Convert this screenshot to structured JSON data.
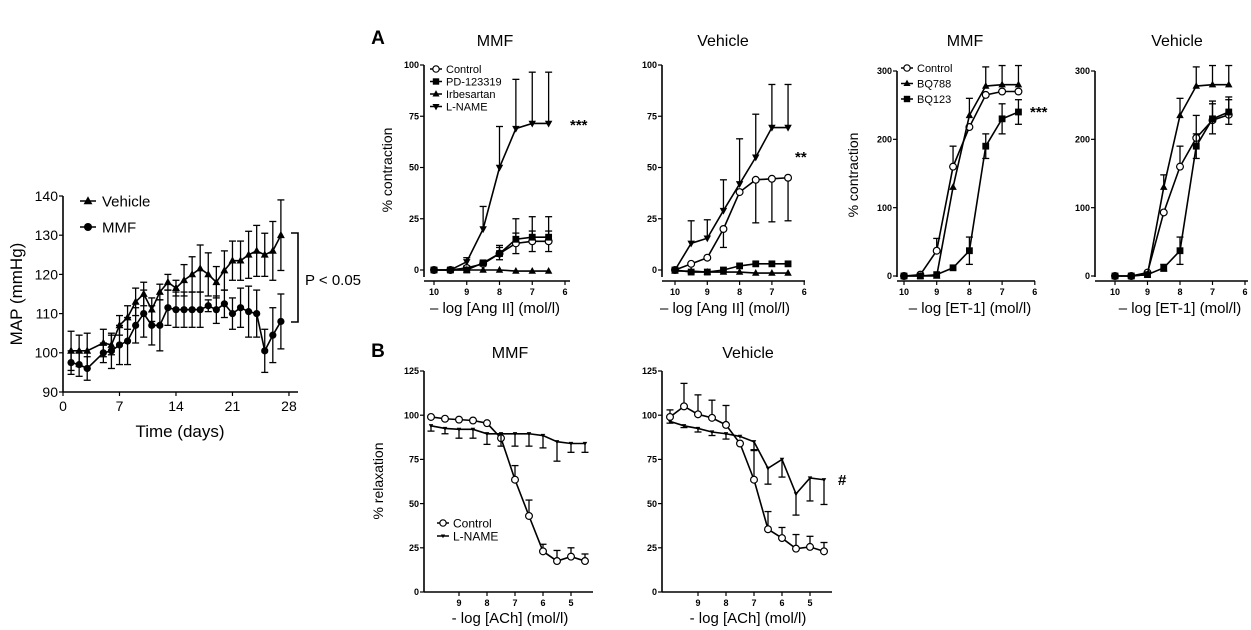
{
  "panel_labels": {
    "a": "A",
    "b": "B"
  },
  "chart_data": [
    {
      "id": "map",
      "type": "line",
      "title": "",
      "xlabel": "Time (days)",
      "ylabel": "MAP (mmHg)",
      "xlim": [
        0,
        28
      ],
      "ylim": [
        90,
        140
      ],
      "xticks": [
        0,
        7,
        14,
        21,
        28
      ],
      "yticks": [
        90,
        100,
        110,
        120,
        130,
        140
      ],
      "legend": "top-left",
      "annotation": "P < 0.05",
      "x": [
        1,
        2,
        3,
        5,
        6,
        7,
        8,
        9,
        10,
        11,
        12,
        13,
        14,
        15,
        16,
        17,
        18,
        19,
        20,
        21,
        22,
        23,
        24,
        25,
        26,
        27
      ],
      "series": [
        {
          "name": "Vehicle",
          "marker": "triangle-up",
          "err_dir": "both",
          "values": [
            100.5,
            100.5,
            100.5,
            102.5,
            102,
            107,
            109,
            113,
            115,
            111,
            115.5,
            118,
            116.5,
            118.5,
            120,
            121.5,
            120,
            118,
            121,
            123.5,
            123.5,
            125,
            126,
            125,
            126,
            130
          ],
          "err": [
            5,
            4,
            4.5,
            3.5,
            2.5,
            2.5,
            3,
            3.5,
            3,
            3,
            2,
            2,
            2,
            4,
            4.5,
            6,
            5.5,
            4,
            5,
            5,
            5,
            6,
            6.5,
            5.5,
            7.5,
            9
          ]
        },
        {
          "name": "MMF",
          "marker": "circle-filled",
          "err_dir": "both",
          "values": [
            97.5,
            97,
            96,
            100,
            100.5,
            102,
            103,
            107,
            110,
            107,
            107,
            111.5,
            111,
            111,
            111,
            111,
            112,
            111,
            112.5,
            110,
            111.5,
            110.5,
            110,
            100.5,
            104.5,
            108
          ],
          "err": [
            3,
            3,
            3,
            2.5,
            4.5,
            5,
            6,
            4.5,
            6,
            5,
            6.5,
            4.5,
            4.5,
            4.5,
            4.5,
            4.5,
            1.5,
            3.5,
            3.5,
            4,
            5,
            6.5,
            6,
            5.5,
            7,
            7
          ]
        }
      ]
    },
    {
      "id": "a_mmf",
      "type": "line",
      "title": "MMF",
      "xlabel": "– log [Ang II] (mol/l)",
      "ylabel": "% contraction",
      "xlim": [
        10,
        6
      ],
      "ylim": [
        0,
        100
      ],
      "xticks": [
        10,
        9,
        8,
        7,
        6
      ],
      "yticks": [
        0,
        25,
        50,
        75,
        100
      ],
      "legend": "top-left",
      "annotation": "***",
      "x": [
        10,
        9.5,
        9,
        8.5,
        8,
        7.5,
        7,
        6.5
      ],
      "series": [
        {
          "name": "Control",
          "marker": "circle-open",
          "err_dir": "both",
          "values": [
            0,
            0,
            1,
            3,
            8,
            13,
            14,
            14
          ],
          "err": [
            0,
            0,
            1,
            1,
            3,
            5,
            5,
            5
          ]
        },
        {
          "name": "PD-123319",
          "marker": "square",
          "err_dir": "up",
          "values": [
            0,
            0,
            0,
            3.5,
            8,
            15,
            16,
            16
          ],
          "err": [
            0,
            0,
            0,
            1,
            4,
            10,
            10,
            10
          ]
        },
        {
          "name": "Irbesartan",
          "marker": "triangle-up",
          "err_dir": "up",
          "values": [
            0,
            0,
            0,
            0,
            0,
            -0.5,
            -0.5,
            -0.5
          ],
          "err": [
            0,
            0,
            0,
            0,
            0,
            0,
            0,
            0
          ]
        },
        {
          "name": "L-NAME",
          "marker": "triangle-down",
          "err_dir": "up",
          "values": [
            0,
            0,
            4,
            20,
            50,
            69,
            71.5,
            71.5
          ],
          "err": [
            0,
            0,
            2,
            11,
            20,
            24,
            25,
            25
          ]
        }
      ]
    },
    {
      "id": "a_veh",
      "type": "line",
      "title": "Vehicle",
      "xlabel": "– log [Ang II] (mol/l)",
      "ylabel": "",
      "xlim": [
        10,
        6
      ],
      "ylim": [
        0,
        100
      ],
      "xticks": [
        10,
        9,
        8,
        7,
        6
      ],
      "yticks": [
        0,
        25,
        50,
        75,
        100
      ],
      "annotation": "**",
      "x": [
        10,
        9.5,
        9,
        8.5,
        8,
        7.5,
        7,
        6.5
      ],
      "series": [
        {
          "name": "Control",
          "marker": "circle-open",
          "err_dir": "down",
          "values": [
            0,
            3,
            6,
            20,
            38,
            44,
            44.5,
            45
          ],
          "err": [
            0,
            0,
            0,
            9,
            0,
            21,
            21,
            21
          ]
        },
        {
          "name": "PD-123319",
          "marker": "square",
          "err_dir": "up",
          "values": [
            0,
            -1,
            -1,
            0,
            2,
            3,
            3,
            3
          ],
          "err": [
            0,
            0,
            0,
            0,
            0,
            0,
            0,
            0
          ]
        },
        {
          "name": "Irbesartan",
          "marker": "triangle-up",
          "err_dir": "up",
          "values": [
            -0.5,
            -0.5,
            -1,
            -1,
            -1,
            -1.5,
            -1.5,
            -1.5
          ],
          "err": [
            0,
            0,
            0,
            0,
            0,
            0,
            0,
            0
          ]
        },
        {
          "name": "L-NAME",
          "marker": "triangle-down",
          "err_dir": "up",
          "values": [
            0,
            13,
            15.5,
            29,
            42,
            55,
            69.5,
            69.5
          ],
          "err": [
            0,
            11,
            9,
            15,
            22,
            21,
            21,
            21
          ]
        }
      ]
    },
    {
      "id": "et_mmf",
      "type": "line",
      "title": "MMF",
      "xlabel": "– log [ET-1] (mol/l)",
      "ylabel": "% contraction",
      "xlim": [
        10,
        6
      ],
      "ylim": [
        0,
        300
      ],
      "xticks": [
        10,
        9,
        8,
        7,
        6
      ],
      "yticks": [
        0,
        100,
        200,
        300
      ],
      "legend": "top-left",
      "annotation": "***",
      "x": [
        10,
        9.5,
        9,
        8.5,
        8,
        7.5,
        7,
        6.5
      ],
      "series": [
        {
          "name": "Control",
          "marker": "circle-open",
          "err_dir": "up",
          "values": [
            0,
            2,
            37,
            160,
            218,
            265,
            270,
            270
          ],
          "err": [
            0,
            0,
            18,
            30,
            0,
            0,
            0,
            0
          ]
        },
        {
          "name": "BQ788",
          "marker": "triangle-up",
          "err_dir": "up",
          "values": [
            0,
            0,
            0,
            130,
            235,
            278,
            280,
            280
          ],
          "err": [
            0,
            0,
            0,
            0,
            25,
            28,
            28,
            28
          ]
        },
        {
          "name": "BQ123",
          "marker": "square",
          "err_dir": "both",
          "values": [
            0,
            0,
            2,
            12,
            37,
            190,
            230,
            240
          ],
          "err": [
            0,
            0,
            0,
            0,
            20,
            18,
            22,
            18
          ]
        }
      ]
    },
    {
      "id": "et_veh",
      "type": "line",
      "title": "Vehicle",
      "xlabel": "– log [ET-1] (mol/l)",
      "ylabel": "",
      "xlim": [
        10,
        6
      ],
      "ylim": [
        0,
        300
      ],
      "xticks": [
        10,
        9,
        8,
        7,
        6
      ],
      "yticks": [
        0,
        100,
        200,
        300
      ],
      "x": [
        10,
        9.5,
        9,
        8.5,
        8,
        7.5,
        7,
        6.5
      ],
      "series": [
        {
          "name": "Control",
          "marker": "circle-open",
          "err_dir": "up",
          "values": [
            0,
            0,
            5,
            93,
            160,
            202,
            228,
            236
          ],
          "err": [
            0,
            0,
            0,
            0,
            30,
            33,
            28,
            26
          ]
        },
        {
          "name": "BQ788",
          "marker": "triangle-up",
          "err_dir": "up",
          "values": [
            0,
            0,
            2,
            130,
            235,
            278,
            280,
            280
          ],
          "err": [
            0,
            0,
            0,
            18,
            25,
            28,
            28,
            28
          ]
        },
        {
          "name": "BQ123",
          "marker": "square",
          "err_dir": "both",
          "values": [
            0,
            0,
            2,
            12,
            37,
            190,
            230,
            240
          ],
          "err": [
            0,
            0,
            0,
            5,
            20,
            18,
            22,
            18
          ]
        }
      ]
    },
    {
      "id": "b_mmf",
      "type": "line",
      "title": "MMF",
      "xlabel": "- log [ACh] (mol/l)",
      "ylabel": "% relaxation",
      "xlim": [
        10,
        4.5
      ],
      "ylim": [
        0,
        125
      ],
      "xticks": [
        9,
        8,
        7,
        6,
        5
      ],
      "yticks": [
        0,
        25,
        50,
        75,
        100,
        125
      ],
      "legend": "bottom-left",
      "x": [
        10,
        9.5,
        9,
        8.5,
        8,
        7.5,
        7,
        6.5,
        6,
        5.5,
        5,
        4.5
      ],
      "series": [
        {
          "name": "Control",
          "marker": "circle-open",
          "err_dir": "up",
          "values": [
            99,
            98,
            97.5,
            97,
            95.5,
            87,
            63.5,
            43,
            23,
            17.5,
            20,
            17.5
          ],
          "err": [
            0,
            0,
            0,
            0,
            0,
            0,
            8,
            9,
            4,
            6,
            5,
            4
          ]
        },
        {
          "name": "L-NAME",
          "marker": "triangle-down-small",
          "err_dir": "down",
          "values": [
            94,
            92.5,
            92,
            92,
            89.5,
            89.5,
            89.5,
            89.5,
            88.5,
            85,
            84,
            84
          ],
          "err": [
            3,
            3,
            5,
            5,
            6,
            7,
            7,
            7,
            7,
            11,
            5,
            5
          ]
        }
      ]
    },
    {
      "id": "b_veh",
      "type": "line",
      "title": "Vehicle",
      "xlabel": "- log [ACh] (mol/l)",
      "ylabel": "",
      "xlim": [
        10,
        4.5
      ],
      "ylim": [
        0,
        125
      ],
      "xticks": [
        9,
        8,
        7,
        6,
        5
      ],
      "yticks": [
        0,
        25,
        50,
        75,
        100,
        125
      ],
      "annotation": "#",
      "x": [
        10,
        9.5,
        9,
        8.5,
        8,
        7.5,
        7,
        6.5,
        6,
        5.5,
        5,
        4.5
      ],
      "series": [
        {
          "name": "Control",
          "marker": "circle-open",
          "err_dir": "up",
          "values": [
            99,
            105,
            100.5,
            98.5,
            94.5,
            84,
            63.5,
            35.5,
            30.5,
            24.5,
            25.5,
            23
          ],
          "err": [
            4,
            13,
            11,
            10,
            11,
            0,
            17,
            10,
            6,
            8,
            6,
            5
          ]
        },
        {
          "name": "L-NAME",
          "marker": "triangle-down-small",
          "err_dir": "down",
          "values": [
            96.5,
            94,
            92.5,
            90.5,
            89.5,
            88,
            85,
            70,
            75,
            55.5,
            64.5,
            63.5
          ],
          "err": [
            1,
            1,
            2,
            2,
            3,
            0,
            5,
            9,
            10,
            12,
            13,
            14
          ]
        }
      ]
    }
  ]
}
